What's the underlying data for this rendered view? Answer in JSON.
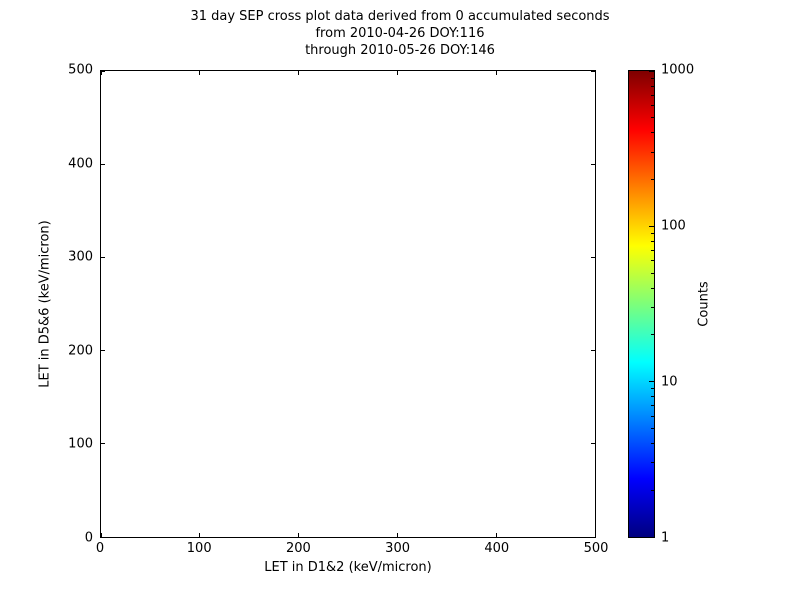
{
  "chart_data": {
    "type": "heatmap",
    "title_lines": [
      "31 day SEP cross plot data derived from 0 accumulated seconds",
      "from 2010-04-26 DOY:116",
      "through 2010-05-26 DOY:146"
    ],
    "xlabel": "LET in D1&2 (keV/micron)",
    "ylabel": "LET in D5&6 (keV/micron)",
    "xlim": [
      0,
      500
    ],
    "ylim": [
      0,
      500
    ],
    "xticks": [
      0,
      100,
      200,
      300,
      400,
      500
    ],
    "yticks": [
      0,
      100,
      200,
      300,
      400,
      500
    ],
    "grid": false,
    "points": [],
    "colors": {
      "background": "#ffffff",
      "axes": "#000000",
      "text": "#000000"
    },
    "colorbar": {
      "label": "Counts",
      "scale": "log",
      "min": 1,
      "max": 1000,
      "ticks": [
        1,
        10,
        100,
        1000
      ],
      "colormap": "jet",
      "gradient": [
        {
          "color": "#7f0000",
          "pos": 0
        },
        {
          "color": "#ff0000",
          "pos": 12.5
        },
        {
          "color": "#ffff00",
          "pos": 37.5
        },
        {
          "color": "#7dff7a",
          "pos": 50
        },
        {
          "color": "#00ffff",
          "pos": 62.5
        },
        {
          "color": "#0000ff",
          "pos": 87.5
        },
        {
          "color": "#00007f",
          "pos": 100
        }
      ]
    }
  }
}
